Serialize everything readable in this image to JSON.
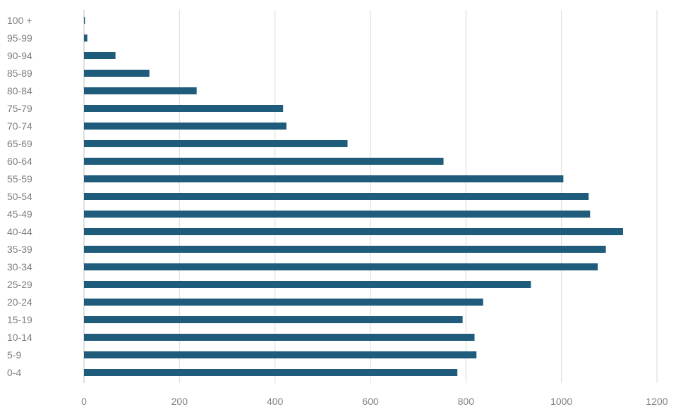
{
  "chart_data": {
    "type": "bar",
    "orientation": "horizontal",
    "title": "",
    "xlabel": "",
    "ylabel": "",
    "categories": [
      "0-4",
      "5-9",
      "10-14",
      "15-19",
      "20-24",
      "25-29",
      "30-34",
      "35-39",
      "40-44",
      "45-49",
      "50-54",
      "55-59",
      "60-64",
      "65-69",
      "70-74",
      "75-79",
      "80-84",
      "85-89",
      "90-94",
      "95-99",
      "100 +"
    ],
    "values": [
      782,
      822,
      818,
      793,
      836,
      936,
      1076,
      1093,
      1129,
      1060,
      1057,
      1004,
      753,
      552,
      424,
      417,
      236,
      137,
      66,
      7,
      2
    ],
    "xlim": [
      0,
      1200
    ],
    "xticks": [
      0,
      200,
      400,
      600,
      800,
      1000,
      1200
    ],
    "xtick_labels": [
      "0",
      "200",
      "400",
      "600",
      "800",
      "1000",
      "1200"
    ],
    "bar_color": "#1f5b7a",
    "grid": "vertical"
  }
}
